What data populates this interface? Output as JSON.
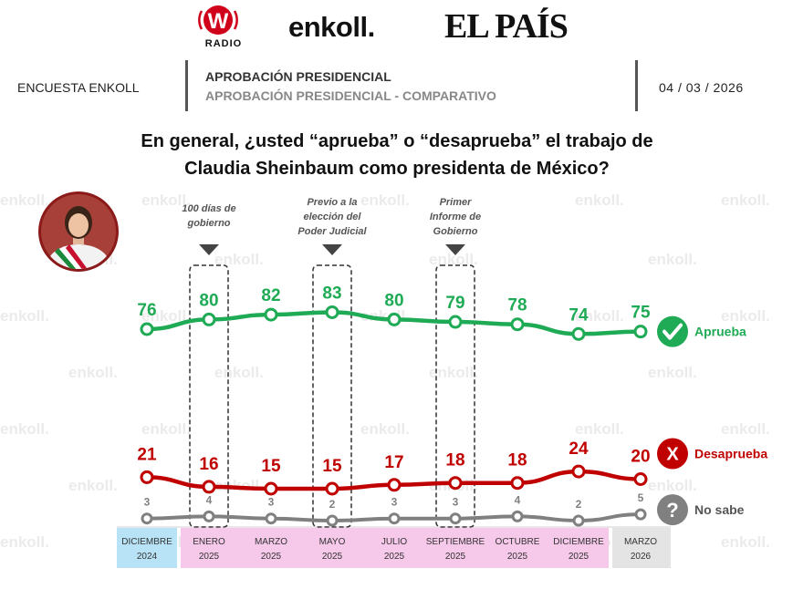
{
  "logos": {
    "w_letter": "W",
    "w_radio": "RADIO",
    "enkoll": "enkoll.",
    "elpais": "EL PAÍS"
  },
  "header": {
    "left": "ENCUESTA ENKOLL",
    "title": "APROBACIÓN PRESIDENCIAL",
    "subtitle": "APROBACIÓN PRESIDENCIAL - COMPARATIVO",
    "date": "04 / 03 / 2026"
  },
  "question": {
    "line1": "En general, ¿usted “aprueba” o “desaprueba” el trabajo de",
    "line2": "Claudia Sheinbaum como presidenta de México?"
  },
  "watermark": "enkoll.",
  "colors": {
    "aprueba": "#1fab55",
    "desaprueba": "#c00000",
    "no_sabe": "#808080",
    "pink_band": "#f6c8ea",
    "blue_band": "#b8e3f7",
    "gray_band": "#e4e4e4"
  },
  "chart_data": {
    "type": "line",
    "categories": [
      [
        "DICIEMBRE",
        "2024"
      ],
      [
        "ENERO",
        "2025"
      ],
      [
        "MARZO",
        "2025"
      ],
      [
        "MAYO",
        "2025"
      ],
      [
        "JULIO",
        "2025"
      ],
      [
        "SEPTIEMBRE",
        "2025"
      ],
      [
        "OCTUBRE",
        "2025"
      ],
      [
        "DICIEMBRE",
        "2025"
      ],
      [
        "MARZO",
        "2026"
      ]
    ],
    "category_bands": [
      "blue",
      "pink",
      "pink",
      "pink",
      "pink",
      "pink",
      "pink",
      "pink",
      "gray"
    ],
    "series": [
      {
        "name": "Aprueba",
        "key": "aprueba",
        "icon": "check-icon",
        "values": [
          76,
          80,
          82,
          83,
          80,
          79,
          78,
          74,
          75
        ]
      },
      {
        "name": "Desaprueba",
        "key": "desaprueba",
        "icon": "x-icon",
        "values": [
          21,
          16,
          15,
          15,
          17,
          18,
          18,
          24,
          20
        ]
      },
      {
        "name": "No sabe",
        "key": "no_sabe",
        "icon": "question-icon",
        "values": [
          3,
          4,
          3,
          2,
          3,
          3,
          4,
          2,
          5
        ]
      }
    ],
    "annotations": [
      {
        "category_index": 1,
        "lines": [
          "100 días de",
          "gobierno"
        ]
      },
      {
        "category_index": 3,
        "lines": [
          "Previo a la",
          "elección del",
          "Poder Judicial"
        ]
      },
      {
        "category_index": 5,
        "lines": [
          "Primer",
          "Informe de",
          "Gobierno"
        ]
      }
    ]
  }
}
